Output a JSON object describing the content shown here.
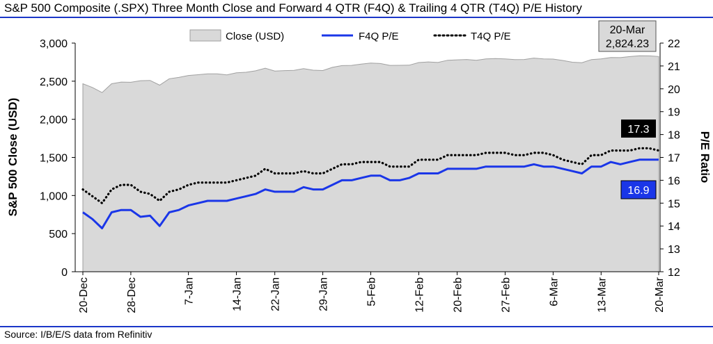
{
  "header": {
    "title": "S&P 500 Composite (.SPX) Three Month Close and Forward 4 QTR (F4Q) & Trailing 4 QTR (T4Q) P/E History"
  },
  "footer": {
    "source": "Source: I/B/E/S data from Refinitiv"
  },
  "colors": {
    "rule": "#1a36c8",
    "close_fill": "#d9d9d9",
    "f4q_line": "#1a36e8",
    "t4q_line": "#000000",
    "t4q_badge": "#000000",
    "f4q_badge": "#1a36e8"
  },
  "chart_data": {
    "type": "area",
    "legend_position": "top",
    "grid": false,
    "x": [
      "20-Dec",
      "21-Dec",
      "24-Dec",
      "26-Dec",
      "27-Dec",
      "28-Dec",
      "31-Dec",
      "2-Jan",
      "3-Jan",
      "4-Jan",
      "7-Jan",
      "8-Jan",
      "9-Jan",
      "10-Jan",
      "11-Jan",
      "14-Jan",
      "15-Jan",
      "16-Jan",
      "17-Jan",
      "18-Jan",
      "22-Jan",
      "23-Jan",
      "24-Jan",
      "25-Jan",
      "28-Jan",
      "29-Jan",
      "30-Jan",
      "31-Jan",
      "1-Feb",
      "4-Feb",
      "5-Feb",
      "6-Feb",
      "7-Feb",
      "8-Feb",
      "11-Feb",
      "12-Feb",
      "13-Feb",
      "14-Feb",
      "15-Feb",
      "19-Feb",
      "20-Feb",
      "21-Feb",
      "22-Feb",
      "25-Feb",
      "26-Feb",
      "27-Feb",
      "28-Feb",
      "1-Mar",
      "4-Mar",
      "5-Mar",
      "6-Mar",
      "7-Mar",
      "8-Mar",
      "11-Mar",
      "12-Mar",
      "13-Mar",
      "14-Mar",
      "15-Mar",
      "18-Mar",
      "19-Mar",
      "20-Mar"
    ],
    "x_tick_labels": [
      "20-Dec",
      "28-Dec",
      "7-Jan",
      "14-Jan",
      "22-Jan",
      "29-Jan",
      "5-Feb",
      "12-Feb",
      "20-Feb",
      "27-Feb",
      "6-Mar",
      "13-Mar",
      "20-Mar"
    ],
    "series": [
      {
        "name": "Close (USD)",
        "type": "area",
        "axis": "left",
        "values": [
          2467,
          2417,
          2351,
          2467,
          2488,
          2486,
          2507,
          2510,
          2448,
          2532,
          2550,
          2575,
          2585,
          2596,
          2596,
          2583,
          2610,
          2617,
          2636,
          2671,
          2633,
          2639,
          2643,
          2665,
          2644,
          2640,
          2682,
          2705,
          2707,
          2725,
          2738,
          2732,
          2707,
          2708,
          2710,
          2745,
          2753,
          2746,
          2775,
          2780,
          2785,
          2775,
          2793,
          2797,
          2793,
          2784,
          2785,
          2803,
          2793,
          2790,
          2772,
          2749,
          2743,
          2784,
          2792,
          2811,
          2809,
          2823,
          2833,
          2832,
          2824
        ]
      },
      {
        "name": "F4Q P/E",
        "type": "line",
        "axis": "right",
        "values": [
          14.6,
          14.3,
          13.9,
          14.6,
          14.7,
          14.7,
          14.4,
          14.45,
          14.0,
          14.6,
          14.7,
          14.9,
          15.0,
          15.1,
          15.1,
          15.1,
          15.2,
          15.3,
          15.4,
          15.6,
          15.5,
          15.5,
          15.5,
          15.7,
          15.6,
          15.6,
          15.8,
          16.0,
          16.0,
          16.1,
          16.2,
          16.2,
          16.0,
          16.0,
          16.1,
          16.3,
          16.3,
          16.3,
          16.5,
          16.5,
          16.5,
          16.5,
          16.6,
          16.6,
          16.6,
          16.6,
          16.6,
          16.7,
          16.6,
          16.6,
          16.5,
          16.4,
          16.3,
          16.6,
          16.6,
          16.8,
          16.7,
          16.8,
          16.9,
          16.9,
          16.9
        ]
      },
      {
        "name": "T4Q P/E",
        "type": "line",
        "style": "dotted",
        "axis": "right",
        "values": [
          15.6,
          15.3,
          15.0,
          15.6,
          15.8,
          15.8,
          15.5,
          15.4,
          15.1,
          15.5,
          15.6,
          15.8,
          15.9,
          15.9,
          15.9,
          15.9,
          16.0,
          16.1,
          16.2,
          16.5,
          16.3,
          16.3,
          16.3,
          16.4,
          16.3,
          16.3,
          16.5,
          16.7,
          16.7,
          16.8,
          16.8,
          16.8,
          16.6,
          16.6,
          16.6,
          16.9,
          16.9,
          16.9,
          17.1,
          17.1,
          17.1,
          17.1,
          17.2,
          17.2,
          17.2,
          17.1,
          17.1,
          17.2,
          17.2,
          17.1,
          16.9,
          16.8,
          16.7,
          17.1,
          17.1,
          17.3,
          17.3,
          17.3,
          17.4,
          17.4,
          17.3
        ]
      }
    ],
    "y_left": {
      "label": "S&P 500 Close (USD)",
      "lim": [
        0,
        3000
      ],
      "ticks": [
        "0",
        "500",
        "1,000",
        "1,500",
        "2,000",
        "2,500",
        "3,000"
      ]
    },
    "y_right": {
      "label": "P/E Ratio",
      "lim": [
        12,
        22
      ],
      "ticks": [
        "12",
        "13",
        "14",
        "15",
        "16",
        "17",
        "18",
        "19",
        "20",
        "21",
        "22"
      ]
    },
    "annotations": {
      "last_close_date": "20-Mar",
      "last_close_value": "2,824.23",
      "t4q_last": "17.3",
      "f4q_last": "16.9"
    }
  }
}
